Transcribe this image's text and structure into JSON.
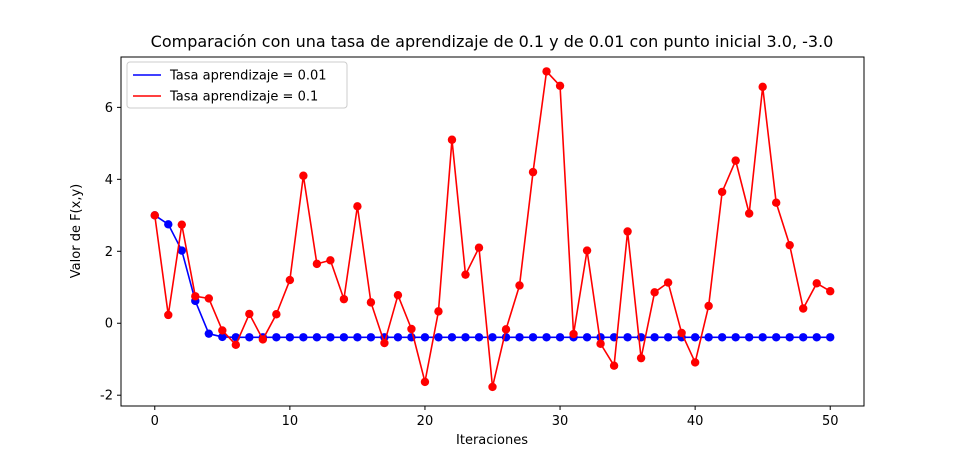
{
  "chart_data": {
    "type": "line",
    "title": "Comparación con una tasa de aprendizaje de 0.1 y de 0.01 con punto inicial 3.0, -3.0",
    "xlabel": "Iteraciones",
    "ylabel": "Valor de F(x,y)",
    "xlim": [
      -2.5,
      52.5
    ],
    "ylim": [
      -2.3,
      7.4
    ],
    "xticks": [
      0,
      10,
      20,
      30,
      40,
      50
    ],
    "yticks": [
      -2,
      0,
      2,
      4,
      6
    ],
    "grid": false,
    "legend_position": "upper-left",
    "x": [
      0,
      1,
      2,
      3,
      4,
      5,
      6,
      7,
      8,
      9,
      10,
      11,
      12,
      13,
      14,
      15,
      16,
      17,
      18,
      19,
      20,
      21,
      22,
      23,
      24,
      25,
      26,
      27,
      28,
      29,
      30,
      31,
      32,
      33,
      34,
      35,
      36,
      37,
      38,
      39,
      40,
      41,
      42,
      43,
      44,
      45,
      46,
      47,
      48,
      49,
      50
    ],
    "series": [
      {
        "name": "Tasa aprendizaje = 0.01",
        "color": "#0000ff",
        "values": [
          3.0,
          2.75,
          2.02,
          0.62,
          -0.29,
          -0.38,
          -0.39,
          -0.39,
          -0.39,
          -0.39,
          -0.39,
          -0.39,
          -0.39,
          -0.39,
          -0.39,
          -0.39,
          -0.39,
          -0.39,
          -0.39,
          -0.39,
          -0.39,
          -0.39,
          -0.39,
          -0.39,
          -0.39,
          -0.39,
          -0.39,
          -0.39,
          -0.39,
          -0.39,
          -0.39,
          -0.39,
          -0.39,
          -0.39,
          -0.39,
          -0.39,
          -0.39,
          -0.39,
          -0.39,
          -0.39,
          -0.39,
          -0.39,
          -0.39,
          -0.39,
          -0.39,
          -0.39,
          -0.39,
          -0.39,
          -0.39,
          -0.39,
          -0.39
        ]
      },
      {
        "name": "Tasa aprendizaje = 0.1",
        "color": "#ff0000",
        "values": [
          3.0,
          0.23,
          2.74,
          0.75,
          0.69,
          -0.2,
          -0.6,
          0.26,
          -0.45,
          0.25,
          1.2,
          4.1,
          1.65,
          1.75,
          0.67,
          3.25,
          0.58,
          -0.55,
          0.78,
          -0.16,
          -1.63,
          0.33,
          5.1,
          1.35,
          2.1,
          -1.77,
          -0.17,
          1.05,
          4.2,
          7.0,
          6.6,
          -0.3,
          2.02,
          -0.57,
          -1.18,
          2.55,
          -0.97,
          0.86,
          1.13,
          -0.27,
          -1.09,
          0.48,
          3.65,
          4.52,
          3.05,
          6.57,
          3.35,
          2.17,
          0.41,
          1.11,
          0.89
        ]
      }
    ]
  }
}
